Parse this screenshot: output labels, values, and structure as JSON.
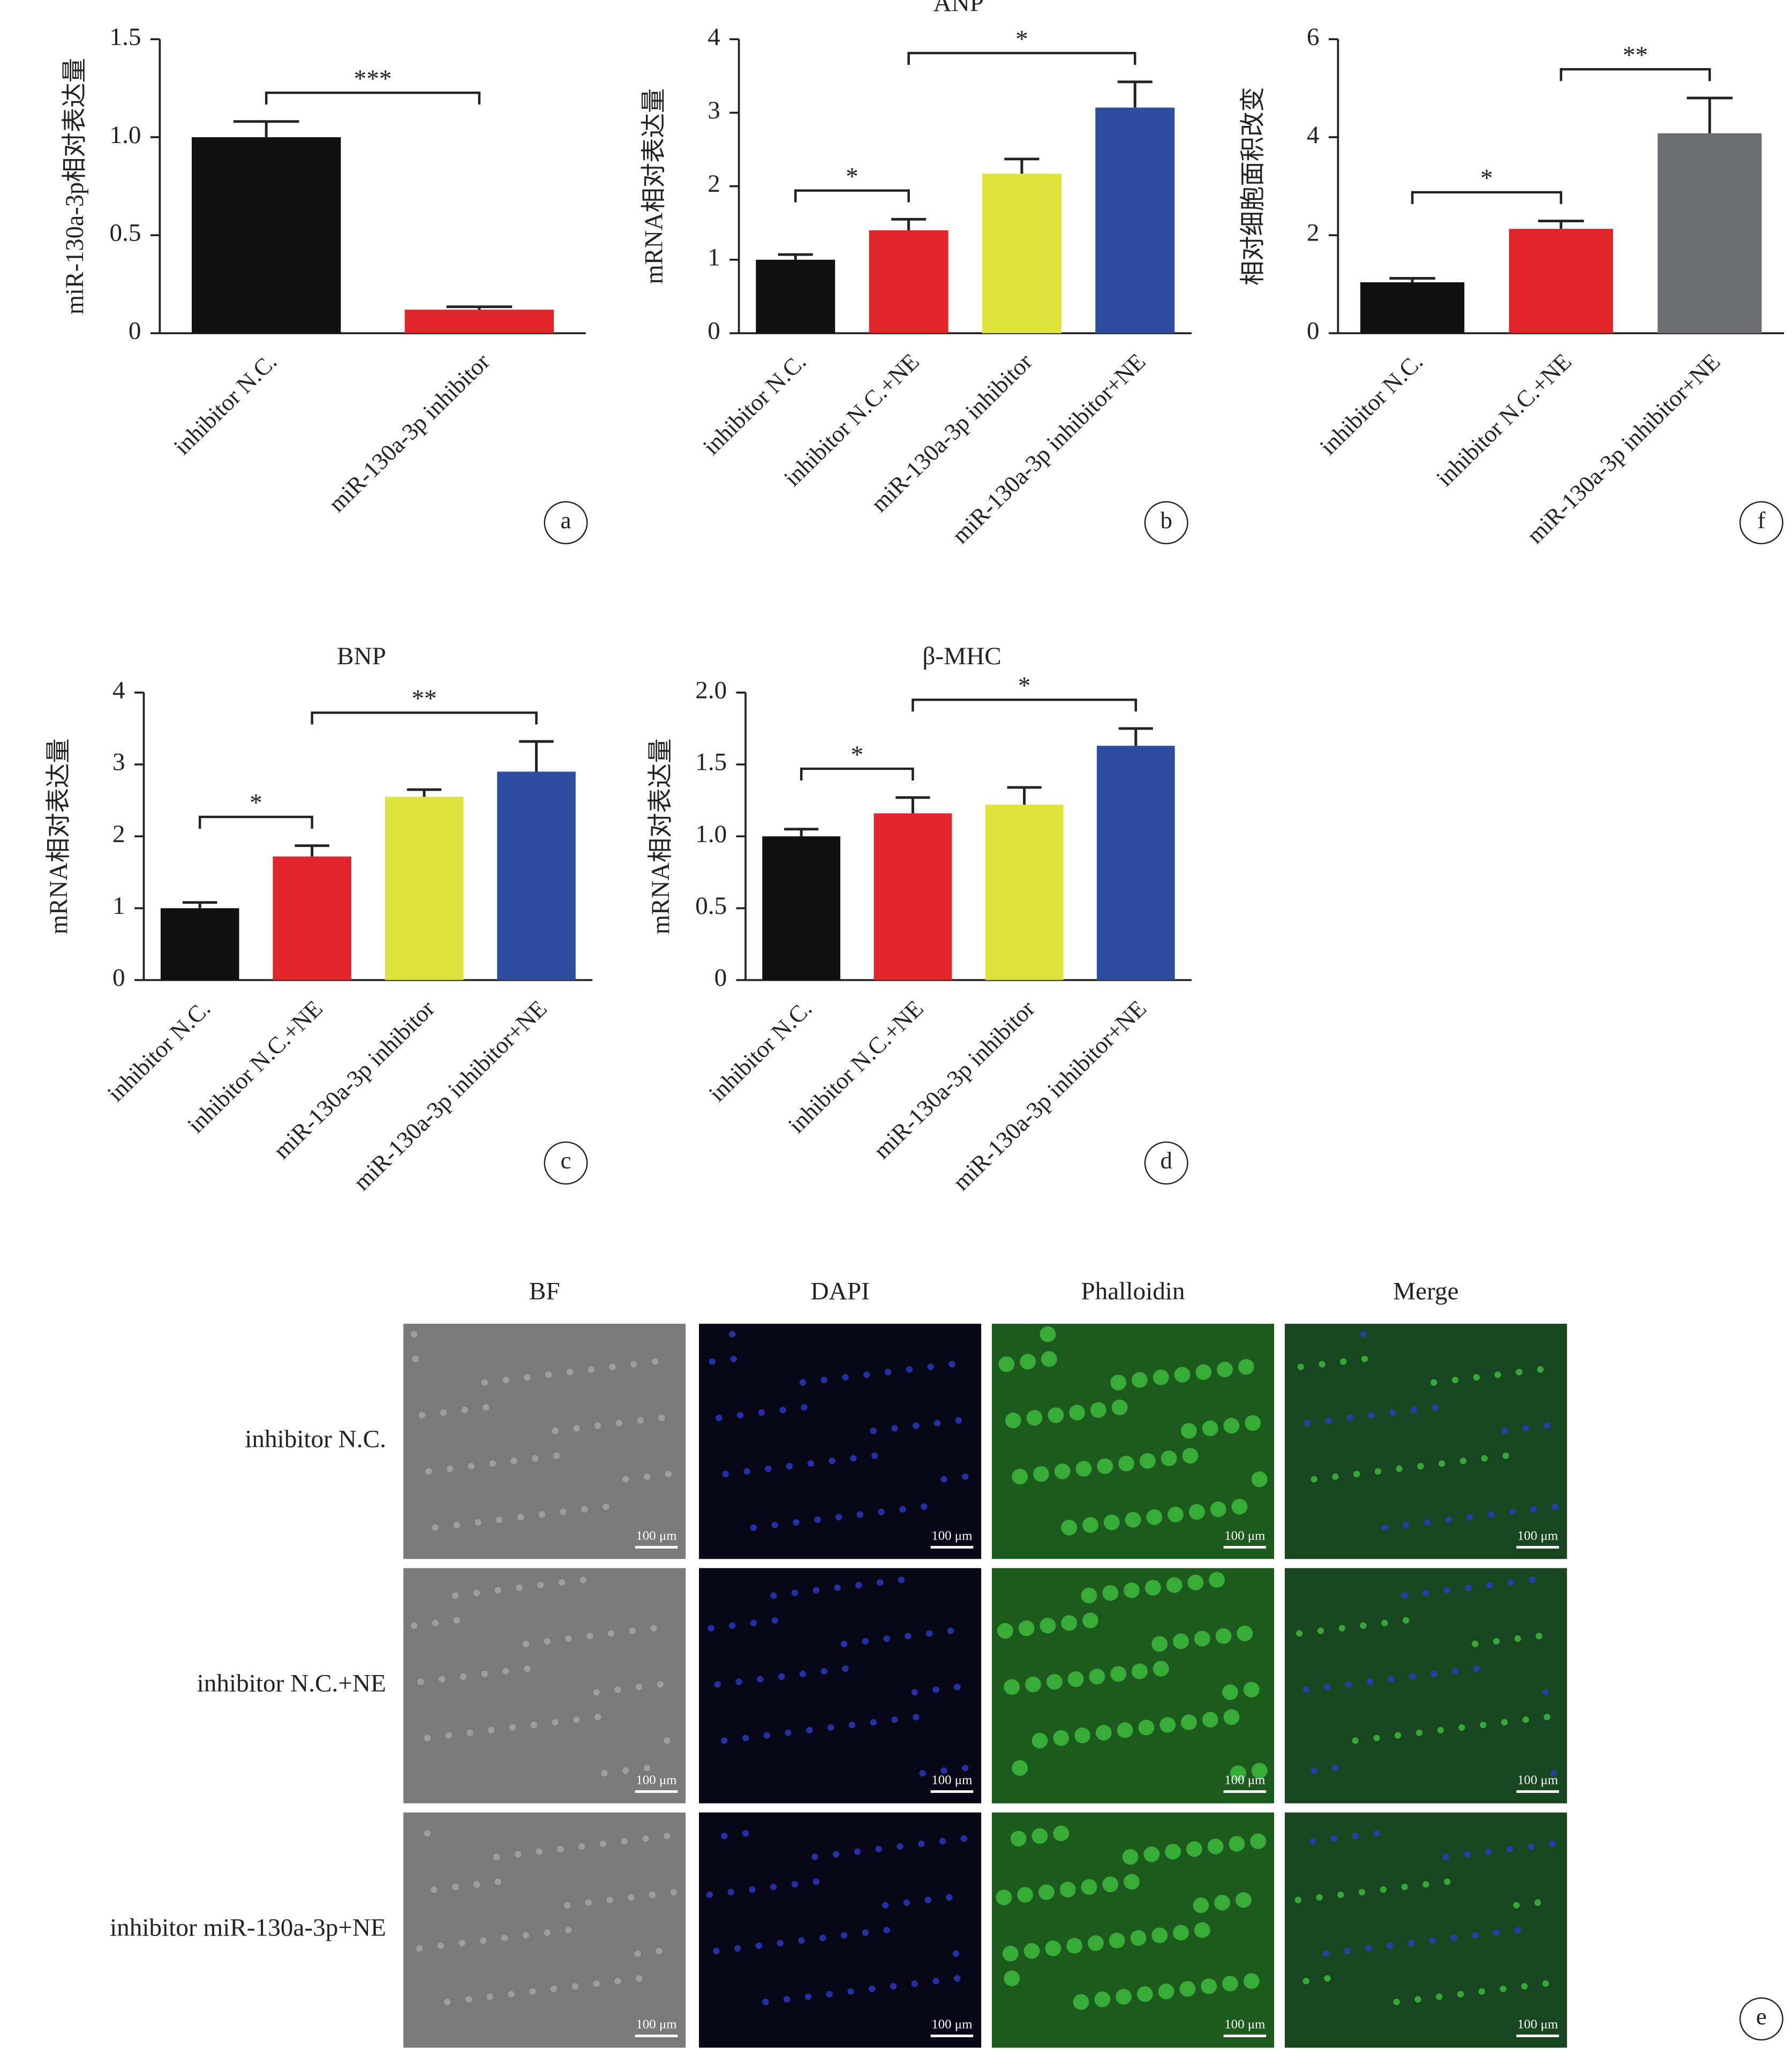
{
  "chart_data": [
    {
      "type": "bar",
      "panel": "a",
      "ylabel": "miR-130a-3p相对表达量",
      "categories": [
        "inhibitor N.C.",
        "miR-130a-3p inhibitor"
      ],
      "values": [
        1.0,
        0.12
      ],
      "errors": [
        0.08,
        0.015
      ],
      "colors": [
        "#111111",
        "#e0262b"
      ],
      "ylim": [
        0,
        1.5
      ],
      "yticks": [
        0,
        0.5,
        {
          "value": 1,
          "label": "1.0"
        },
        1.5
      ],
      "annotations": [
        {
          "text": "***",
          "between": [
            0,
            1
          ]
        }
      ]
    },
    {
      "type": "bar",
      "panel": "b",
      "title": "ANP",
      "ylabel": "mRNA相对表达量",
      "categories": [
        "inhibitor N.C.",
        "inhibitor N.C.+NE",
        "miR-130a-3p inhibitor",
        "miR-130a-3p inhibitor+NE"
      ],
      "values": [
        1.0,
        1.4,
        2.17,
        3.07
      ],
      "errors": [
        0.07,
        0.15,
        0.2,
        0.35
      ],
      "colors": [
        "#111111",
        "#e0262b",
        "#dde33a",
        "#2f4da0"
      ],
      "ylim": [
        0,
        4
      ],
      "yticks": [
        0,
        1,
        2,
        3,
        4
      ],
      "annotations": [
        {
          "text": "*",
          "between": [
            0,
            1
          ]
        },
        {
          "text": "*",
          "between": [
            1,
            3
          ]
        }
      ]
    },
    {
      "type": "bar",
      "panel": "f",
      "ylabel": "相对细胞面积改变",
      "categories": [
        "inhibitor N.C.",
        "inhibitor N.C.+NE",
        "miR-130a-3p inhibitor+NE"
      ],
      "values": [
        1.04,
        2.13,
        4.08
      ],
      "errors": [
        0.08,
        0.16,
        0.72
      ],
      "colors": [
        "#111111",
        "#e0262b",
        "#6d6e72"
      ],
      "ylim": [
        0,
        6
      ],
      "yticks": [
        0,
        2,
        4,
        6
      ],
      "annotations": [
        {
          "text": "*",
          "between": [
            0,
            1
          ]
        },
        {
          "text": "**",
          "between": [
            1,
            2
          ]
        }
      ]
    },
    {
      "type": "bar",
      "panel": "c",
      "title": "BNP",
      "ylabel": "mRNA相对表达量",
      "categories": [
        "inhibitor N.C.",
        "inhibitor N.C.+NE",
        "miR-130a-3p inhibitor",
        "miR-130a-3p inhibitor+NE"
      ],
      "values": [
        1.0,
        1.72,
        2.55,
        2.9
      ],
      "errors": [
        0.08,
        0.15,
        0.1,
        0.42
      ],
      "colors": [
        "#111111",
        "#e0262b",
        "#dde33a",
        "#2f4da0"
      ],
      "ylim": [
        0,
        4
      ],
      "yticks": [
        0,
        1,
        2,
        3,
        4
      ],
      "annotations": [
        {
          "text": "*",
          "between": [
            0,
            1
          ]
        },
        {
          "text": "**",
          "between": [
            1,
            3
          ]
        }
      ]
    },
    {
      "type": "bar",
      "panel": "d",
      "title": "β-MHC",
      "ylabel": "mRNA相对表达量",
      "categories": [
        "inhibitor N.C.",
        "inhibitor N.C.+NE",
        "miR-130a-3p inhibitor",
        "miR-130a-3p inhibitor+NE"
      ],
      "values": [
        1.0,
        1.16,
        1.22,
        1.63
      ],
      "errors": [
        0.05,
        0.11,
        0.12,
        0.12
      ],
      "colors": [
        "#111111",
        "#e0262b",
        "#dde33a",
        "#2f4da0"
      ],
      "ylim": [
        0,
        2
      ],
      "yticks": [
        0,
        0.5,
        {
          "value": 1,
          "label": "1.0"
        },
        1.5,
        {
          "value": 2,
          "label": "2.0"
        }
      ],
      "annotations": [
        {
          "text": "*",
          "between": [
            0,
            1
          ]
        },
        {
          "text": "*",
          "between": [
            1,
            3
          ]
        }
      ]
    }
  ],
  "figure": {
    "panel": "e",
    "columns": [
      "BF",
      "DAPI",
      "Phalloidin",
      "Merge"
    ],
    "rows": [
      "inhibitor N.C.",
      "inhibitor N.C.+NE",
      "inhibitor miR-130a-3p+NE"
    ],
    "scale_bar": "100 μm"
  }
}
